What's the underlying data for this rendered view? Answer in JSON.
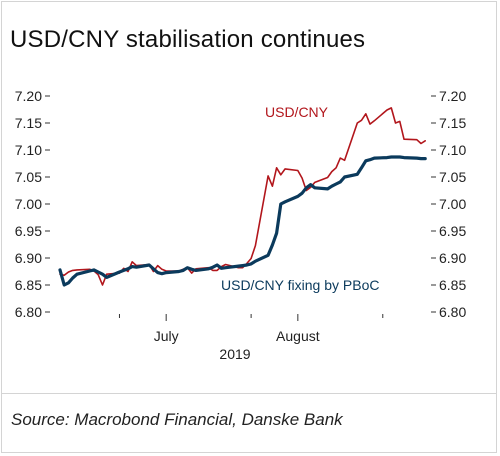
{
  "title": "USD/CNY stabilisation continues",
  "source": "Source: Macrobond Financial, Danske Bank",
  "colors": {
    "usdcny": "#b2161c",
    "fixing": "#0b3a5c",
    "axis": "#333333",
    "frame": "#d4d4d4"
  },
  "chart_data": {
    "type": "line",
    "xlabel": "",
    "ylabel": "",
    "ylim": [
      6.8,
      7.2
    ],
    "y_ticks": [
      7.2,
      7.15,
      7.1,
      7.05,
      7.0,
      6.95,
      6.9,
      6.85,
      6.8
    ],
    "y_tick_labels": [
      "7.20",
      "7.15",
      "7.10",
      "7.05",
      "7.00",
      "6.95",
      "6.90",
      "6.85",
      "6.80"
    ],
    "x_labels": [
      {
        "label": "July",
        "date": "2019-07-12"
      },
      {
        "label": "August",
        "date": "2019-08-12"
      }
    ],
    "x_subtitle": "2019",
    "x_range": [
      "2019-06-17",
      "2019-09-10"
    ],
    "grid": false,
    "legend": "inline labels",
    "annotations": [
      {
        "text": "USD/CNY",
        "series": 0
      },
      {
        "text": "USD/CNY fixing by PBoC",
        "series": 1
      }
    ],
    "series": [
      {
        "name": "USD/CNY",
        "points": [
          [
            "2019-06-17",
            6.87
          ],
          [
            "2019-06-18",
            6.868
          ],
          [
            "2019-06-19",
            6.874
          ],
          [
            "2019-06-20",
            6.877
          ],
          [
            "2019-06-21",
            6.878
          ],
          [
            "2019-06-24",
            6.879
          ],
          [
            "2019-06-25",
            6.876
          ],
          [
            "2019-06-26",
            6.869
          ],
          [
            "2019-06-27",
            6.85
          ],
          [
            "2019-06-28",
            6.87
          ],
          [
            "2019-07-01",
            6.872
          ],
          [
            "2019-07-02",
            6.881
          ],
          [
            "2019-07-03",
            6.875
          ],
          [
            "2019-07-04",
            6.893
          ],
          [
            "2019-07-05",
            6.886
          ],
          [
            "2019-07-08",
            6.888
          ],
          [
            "2019-07-09",
            6.875
          ],
          [
            "2019-07-10",
            6.886
          ],
          [
            "2019-07-11",
            6.879
          ],
          [
            "2019-07-12",
            6.876
          ],
          [
            "2019-07-15",
            6.876
          ],
          [
            "2019-07-16",
            6.879
          ],
          [
            "2019-07-17",
            6.882
          ],
          [
            "2019-07-18",
            6.872
          ],
          [
            "2019-07-19",
            6.88
          ],
          [
            "2019-07-22",
            6.882
          ],
          [
            "2019-07-23",
            6.877
          ],
          [
            "2019-07-24",
            6.877
          ],
          [
            "2019-07-25",
            6.884
          ],
          [
            "2019-07-26",
            6.888
          ],
          [
            "2019-07-29",
            6.882
          ],
          [
            "2019-07-30",
            6.882
          ],
          [
            "2019-07-31",
            6.89
          ],
          [
            "2019-08-01",
            6.899
          ],
          [
            "2019-08-02",
            6.923
          ],
          [
            "2019-08-05",
            7.052
          ],
          [
            "2019-08-06",
            7.033
          ],
          [
            "2019-08-07",
            7.067
          ],
          [
            "2019-08-08",
            7.054
          ],
          [
            "2019-08-09",
            7.065
          ],
          [
            "2019-08-12",
            7.062
          ],
          [
            "2019-08-13",
            7.048
          ],
          [
            "2019-08-14",
            7.025
          ],
          [
            "2019-08-15",
            7.031
          ],
          [
            "2019-08-16",
            7.04
          ],
          [
            "2019-08-19",
            7.049
          ],
          [
            "2019-08-20",
            7.06
          ],
          [
            "2019-08-21",
            7.067
          ],
          [
            "2019-08-22",
            7.085
          ],
          [
            "2019-08-23",
            7.081
          ],
          [
            "2019-08-26",
            7.15
          ],
          [
            "2019-08-27",
            7.155
          ],
          [
            "2019-08-28",
            7.167
          ],
          [
            "2019-08-29",
            7.148
          ],
          [
            "2019-08-30",
            7.154
          ],
          [
            "2019-09-02",
            7.174
          ],
          [
            "2019-09-03",
            7.178
          ],
          [
            "2019-09-04",
            7.15
          ],
          [
            "2019-09-05",
            7.153
          ],
          [
            "2019-09-06",
            7.12
          ],
          [
            "2019-09-09",
            7.119
          ],
          [
            "2019-09-10",
            7.112
          ],
          [
            "2019-09-11",
            7.117
          ]
        ]
      },
      {
        "name": "USD/CNY fixing by PBoC",
        "points": [
          [
            "2019-06-17",
            6.878
          ],
          [
            "2019-06-18",
            6.85
          ],
          [
            "2019-06-19",
            6.854
          ],
          [
            "2019-06-20",
            6.863
          ],
          [
            "2019-06-21",
            6.87
          ],
          [
            "2019-06-24",
            6.876
          ],
          [
            "2019-06-25",
            6.878
          ],
          [
            "2019-06-26",
            6.874
          ],
          [
            "2019-06-27",
            6.87
          ],
          [
            "2019-06-28",
            6.864
          ],
          [
            "2019-07-01",
            6.874
          ],
          [
            "2019-07-02",
            6.877
          ],
          [
            "2019-07-03",
            6.88
          ],
          [
            "2019-07-04",
            6.884
          ],
          [
            "2019-07-05",
            6.883
          ],
          [
            "2019-07-08",
            6.887
          ],
          [
            "2019-07-09",
            6.88
          ],
          [
            "2019-07-10",
            6.873
          ],
          [
            "2019-07-11",
            6.871
          ],
          [
            "2019-07-12",
            6.873
          ],
          [
            "2019-07-15",
            6.875
          ],
          [
            "2019-07-16",
            6.877
          ],
          [
            "2019-07-17",
            6.882
          ],
          [
            "2019-07-18",
            6.879
          ],
          [
            "2019-07-19",
            6.877
          ],
          [
            "2019-07-22",
            6.88
          ],
          [
            "2019-07-23",
            6.883
          ],
          [
            "2019-07-24",
            6.887
          ],
          [
            "2019-07-25",
            6.881
          ],
          [
            "2019-07-26",
            6.882
          ],
          [
            "2019-07-29",
            6.885
          ],
          [
            "2019-07-30",
            6.886
          ],
          [
            "2019-07-31",
            6.887
          ],
          [
            "2019-08-01",
            6.889
          ],
          [
            "2019-08-02",
            6.894
          ],
          [
            "2019-08-05",
            6.905
          ],
          [
            "2019-08-06",
            6.924
          ],
          [
            "2019-08-07",
            6.946
          ],
          [
            "2019-08-08",
            7.0
          ],
          [
            "2019-08-09",
            7.004
          ],
          [
            "2019-08-12",
            7.014
          ],
          [
            "2019-08-13",
            7.02
          ],
          [
            "2019-08-14",
            7.03
          ],
          [
            "2019-08-15",
            7.036
          ],
          [
            "2019-08-16",
            7.03
          ],
          [
            "2019-08-19",
            7.028
          ],
          [
            "2019-08-20",
            7.033
          ],
          [
            "2019-08-21",
            7.037
          ],
          [
            "2019-08-22",
            7.041
          ],
          [
            "2019-08-23",
            7.05
          ],
          [
            "2019-08-26",
            7.055
          ],
          [
            "2019-08-27",
            7.067
          ],
          [
            "2019-08-28",
            7.08
          ],
          [
            "2019-08-29",
            7.082
          ],
          [
            "2019-08-30",
            7.085
          ],
          [
            "2019-09-02",
            7.086
          ],
          [
            "2019-09-03",
            7.087
          ],
          [
            "2019-09-04",
            7.087
          ],
          [
            "2019-09-05",
            7.087
          ],
          [
            "2019-09-06",
            7.086
          ],
          [
            "2019-09-09",
            7.085
          ],
          [
            "2019-09-10",
            7.084
          ],
          [
            "2019-09-11",
            7.084
          ]
        ]
      }
    ]
  }
}
